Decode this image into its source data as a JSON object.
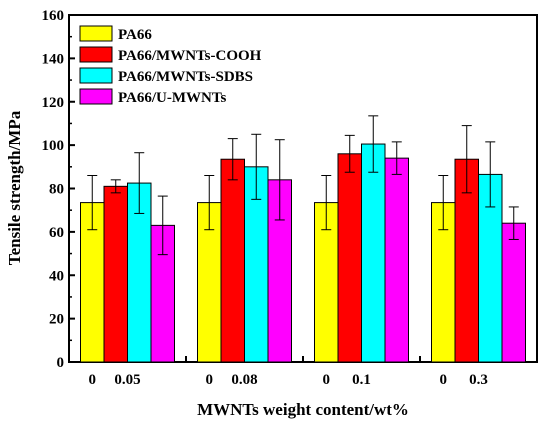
{
  "chart_data": {
    "type": "bar",
    "title": "",
    "xlabel": "MWNTs weight content/wt%",
    "ylabel": "Tensile strength/MPa",
    "ylim": [
      0,
      160
    ],
    "yticks": [
      0,
      20,
      40,
      60,
      80,
      100,
      120,
      140,
      160
    ],
    "grid": false,
    "legend_position": "top-left",
    "groups": [
      {
        "labels": [
          "0",
          "0.05"
        ]
      },
      {
        "labels": [
          "0",
          "0.08"
        ]
      },
      {
        "labels": [
          "0",
          "0.1"
        ]
      },
      {
        "labels": [
          "0",
          "0.3"
        ]
      }
    ],
    "series": [
      {
        "name": "PA66",
        "color": "#ffff00",
        "values": [
          73.5,
          73.5,
          73.5,
          73.5
        ],
        "errors": [
          12.5,
          12.5,
          12.5,
          12.5
        ]
      },
      {
        "name": "PA66/MWNTs-COOH",
        "color": "#ff0000",
        "values": [
          81,
          93.5,
          96,
          93.5
        ],
        "errors": [
          3,
          9.5,
          8.5,
          15.5
        ]
      },
      {
        "name": "PA66/MWNTs-SDBS",
        "color": "#00ffff",
        "values": [
          82.5,
          90,
          100.5,
          86.5
        ],
        "errors": [
          14,
          15,
          13,
          15
        ]
      },
      {
        "name": "PA66/U-MWNTs",
        "color": "#ff00ff",
        "values": [
          63,
          84,
          94,
          64
        ],
        "errors": [
          13.5,
          18.5,
          7.5,
          7.5
        ]
      }
    ]
  }
}
